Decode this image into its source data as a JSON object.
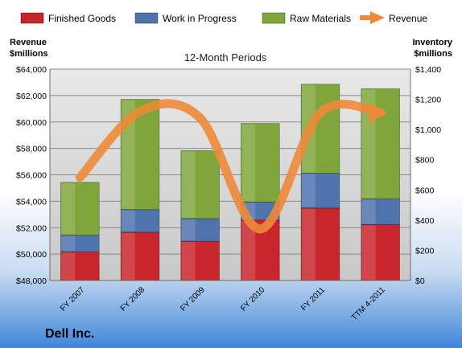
{
  "company": "Dell Inc.",
  "colors": {
    "finished_goods": "#c8262c",
    "work_in_progress": "#4f74ad",
    "raw_materials": "#7fa63a",
    "revenue": "#ed8a3a",
    "background_top": "#ffffff",
    "background_bottom": "#3f86d9"
  },
  "chart_data": {
    "type": "bar",
    "stacked": true,
    "title": "12-Month Periods",
    "left_axis_label": [
      "Revenue",
      "$millions"
    ],
    "right_axis_label": [
      "Inventory",
      "$millions"
    ],
    "categories": [
      "FY 2007",
      "FY 2008",
      "FY 2009",
      "FY 2010",
      "FY 2011",
      "TTM 4-2011"
    ],
    "series": [
      {
        "name": "Finished Goods",
        "axis": "right",
        "values": [
          190,
          320,
          260,
          400,
          480,
          370
        ]
      },
      {
        "name": "Work in Progress",
        "axis": "right",
        "values": [
          110,
          150,
          150,
          120,
          230,
          170
        ]
      },
      {
        "name": "Raw Materials",
        "axis": "right",
        "values": [
          350,
          730,
          450,
          520,
          590,
          730
        ]
      }
    ],
    "line_series": {
      "name": "Revenue",
      "axis": "left",
      "values": [
        55800,
        60800,
        60300,
        51900,
        60700,
        60700
      ]
    },
    "left_axis": {
      "min": 48000,
      "max": 64000,
      "ticks": [
        "$48,000",
        "$50,000",
        "$52,000",
        "$54,000",
        "$56,000",
        "$58,000",
        "$60,000",
        "$62,000",
        "$64,000"
      ]
    },
    "right_axis": {
      "min": 0,
      "max": 1400,
      "ticks": [
        "$0",
        "$200",
        "$400",
        "$600",
        "$800",
        "$1,000",
        "$1,200",
        "$1,400"
      ]
    },
    "legend_position": "top",
    "grid": true
  }
}
